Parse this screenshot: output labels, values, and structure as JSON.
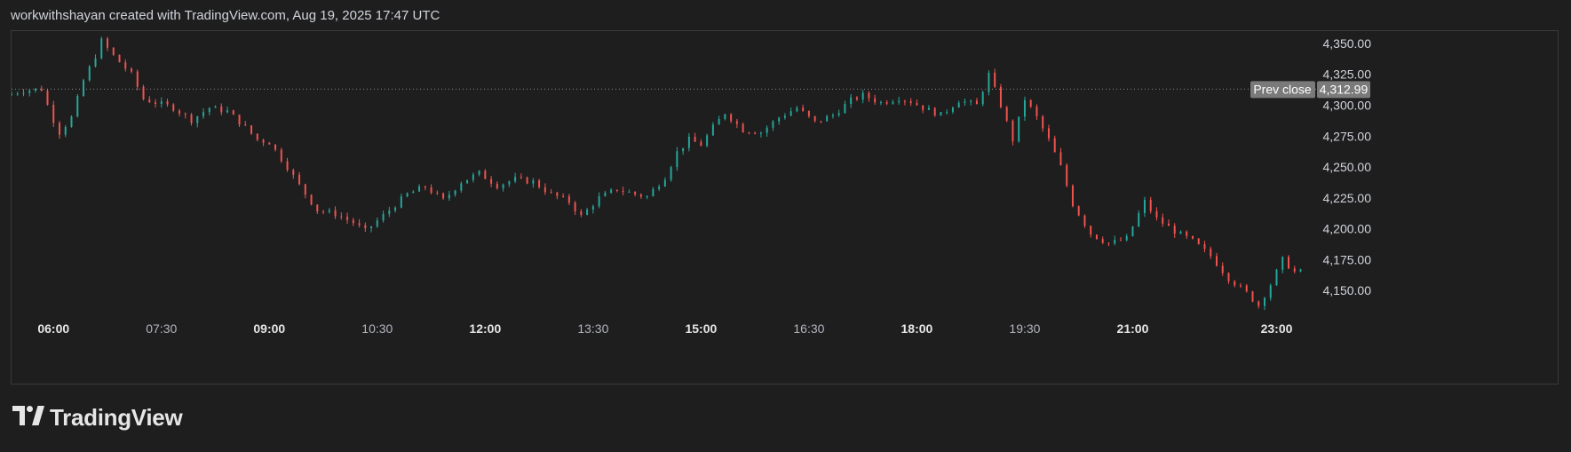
{
  "header": {
    "credit": "workwithshayan created with TradingView.com, Aug 19, 2025 17:47 UTC"
  },
  "brand": {
    "name": "TradingView",
    "logo_icon": "tradingview-logo-icon"
  },
  "colors": {
    "background": "#1e1e1e",
    "up": "#26a69a",
    "down": "#ef5350",
    "prev_close_line": "#8a8a8a",
    "label_bg": "#7a7a7a"
  },
  "chart_data": {
    "type": "candlestick",
    "title": "",
    "xlabel": "",
    "ylabel": "",
    "ylim": [
      4130,
      4360
    ],
    "y_ticks": [
      {
        "value": 4350,
        "label": "4,350.00"
      },
      {
        "value": 4325,
        "label": "4,325.00"
      },
      {
        "value": 4300,
        "label": "4,300.00"
      },
      {
        "value": 4275,
        "label": "4,275.00"
      },
      {
        "value": 4250,
        "label": "4,250.00"
      },
      {
        "value": 4225,
        "label": "4,225.00"
      },
      {
        "value": 4200,
        "label": "4,200.00"
      },
      {
        "value": 4175,
        "label": "4,175.00"
      },
      {
        "value": 4150,
        "label": "4,150.00"
      }
    ],
    "x_ticks": [
      {
        "time": "06:00",
        "label": "06:00",
        "bold": true
      },
      {
        "time": "07:30",
        "label": "07:30",
        "bold": false
      },
      {
        "time": "09:00",
        "label": "09:00",
        "bold": true
      },
      {
        "time": "10:30",
        "label": "10:30",
        "bold": false
      },
      {
        "time": "12:00",
        "label": "12:00",
        "bold": true
      },
      {
        "time": "13:30",
        "label": "13:30",
        "bold": false
      },
      {
        "time": "15:00",
        "label": "15:00",
        "bold": true
      },
      {
        "time": "16:30",
        "label": "16:30",
        "bold": false
      },
      {
        "time": "18:00",
        "label": "18:00",
        "bold": true
      },
      {
        "time": "19:30",
        "label": "19:30",
        "bold": false
      },
      {
        "time": "21:00",
        "label": "21:00",
        "bold": true
      },
      {
        "time": "23:00",
        "label": "23:00",
        "bold": true
      }
    ],
    "x_range": [
      "05:25",
      "23:30"
    ],
    "prev_close": {
      "label": "Prev close",
      "value": 4312.99,
      "value_label": "4,312.99"
    },
    "price_path": [
      [
        "05:25",
        4308
      ],
      [
        "05:40",
        4312
      ],
      [
        "05:55",
        4313
      ],
      [
        "06:00",
        4300
      ],
      [
        "06:05",
        4288
      ],
      [
        "06:10",
        4278
      ],
      [
        "06:20",
        4290
      ],
      [
        "06:30",
        4320
      ],
      [
        "06:40",
        4340
      ],
      [
        "06:45",
        4352
      ],
      [
        "06:55",
        4340
      ],
      [
        "07:10",
        4325
      ],
      [
        "07:20",
        4305
      ],
      [
        "07:45",
        4298
      ],
      [
        "08:00",
        4288
      ],
      [
        "08:15",
        4298
      ],
      [
        "08:30",
        4295
      ],
      [
        "08:45",
        4282
      ],
      [
        "08:55",
        4272
      ],
      [
        "09:05",
        4270
      ],
      [
        "09:20",
        4250
      ],
      [
        "09:30",
        4235
      ],
      [
        "09:45",
        4215
      ],
      [
        "10:00",
        4212
      ],
      [
        "10:15",
        4205
      ],
      [
        "10:25",
        4198
      ],
      [
        "10:45",
        4215
      ],
      [
        "11:00",
        4228
      ],
      [
        "11:15",
        4234
      ],
      [
        "11:30",
        4223
      ],
      [
        "11:45",
        4238
      ],
      [
        "12:00",
        4245
      ],
      [
        "12:15",
        4235
      ],
      [
        "12:30",
        4240
      ],
      [
        "12:45",
        4238
      ],
      [
        "13:00",
        4228
      ],
      [
        "13:15",
        4222
      ],
      [
        "13:25",
        4210
      ],
      [
        "13:40",
        4225
      ],
      [
        "13:55",
        4232
      ],
      [
        "14:10",
        4228
      ],
      [
        "14:20",
        4226
      ],
      [
        "14:35",
        4242
      ],
      [
        "14:45",
        4262
      ],
      [
        "14:55",
        4272
      ],
      [
        "15:05",
        4268
      ],
      [
        "15:15",
        4282
      ],
      [
        "15:25",
        4294
      ],
      [
        "15:40",
        4280
      ],
      [
        "15:55",
        4278
      ],
      [
        "16:10",
        4290
      ],
      [
        "16:25",
        4298
      ],
      [
        "16:40",
        4286
      ],
      [
        "16:55",
        4292
      ],
      [
        "17:10",
        4304
      ],
      [
        "17:20",
        4308
      ],
      [
        "17:35",
        4302
      ],
      [
        "17:50",
        4306
      ],
      [
        "18:00",
        4303
      ],
      [
        "18:10",
        4298
      ],
      [
        "18:25",
        4292
      ],
      [
        "18:40",
        4304
      ],
      [
        "18:55",
        4300
      ],
      [
        "19:05",
        4325
      ],
      [
        "19:15",
        4300
      ],
      [
        "19:25",
        4272
      ],
      [
        "19:35",
        4305
      ],
      [
        "19:45",
        4290
      ],
      [
        "19:55",
        4272
      ],
      [
        "20:05",
        4250
      ],
      [
        "20:15",
        4220
      ],
      [
        "20:30",
        4196
      ],
      [
        "20:45",
        4188
      ],
      [
        "21:00",
        4192
      ],
      [
        "21:15",
        4222
      ],
      [
        "21:25",
        4208
      ],
      [
        "21:40",
        4198
      ],
      [
        "21:55",
        4190
      ],
      [
        "22:10",
        4178
      ],
      [
        "22:25",
        4160
      ],
      [
        "22:40",
        4148
      ],
      [
        "22:50",
        4138
      ],
      [
        "23:00",
        4155
      ],
      [
        "23:10",
        4175
      ],
      [
        "23:20",
        4165
      ]
    ]
  }
}
